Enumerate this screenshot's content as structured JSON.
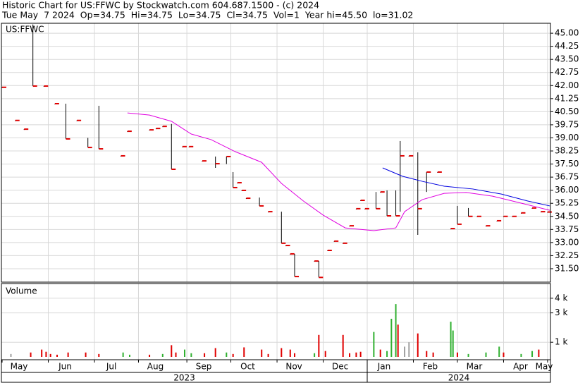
{
  "chart_data": [
    {
      "type": "ohlc",
      "title": "Historic Chart for US:FFWC by Stockwatch.com 604.687.1500 - (c) 2024",
      "subtitle": "Tue May  7 2024  Op=34.75  Hi=34.75  Lo=34.75  Cl=34.75  Vol=1  Year hi=45.50  lo=31.02",
      "label": "US:FFWC",
      "xlim": [
        0,
        249
      ],
      "xticks": [
        {
          "value": 0,
          "label": "May"
        },
        {
          "value": 21,
          "label": "Jun"
        },
        {
          "value": 42,
          "label": "Jul"
        },
        {
          "value": 62,
          "label": "Aug"
        },
        {
          "value": 84,
          "label": "Sep"
        },
        {
          "value": 104,
          "label": "Oct"
        },
        {
          "value": 125,
          "label": "Nov"
        },
        {
          "value": 146,
          "label": "Dec"
        },
        {
          "value": 166,
          "label": "Jan"
        },
        {
          "value": 187,
          "label": "Feb"
        },
        {
          "value": 207,
          "label": "Mar"
        },
        {
          "value": 228,
          "label": "Apr"
        },
        {
          "value": 248,
          "label": "May"
        }
      ],
      "years": [
        "2023",
        "2024"
      ],
      "ylim": [
        30.73,
        45.57
      ],
      "yticks": [
        {
          "value": 31.5,
          "label": "31.50"
        },
        32.25,
        {
          "value": 33,
          "label": "33.00"
        },
        33.75,
        {
          "value": 34.5,
          "label": "34.50"
        },
        35.25,
        {
          "value": 36,
          "label": "36.00"
        },
        36.75,
        {
          "value": 37.5,
          "label": "37.50"
        },
        38.25,
        {
          "value": 39,
          "label": "39.00"
        },
        39.75,
        {
          "value": 40.5,
          "label": "40.50"
        },
        41.25,
        {
          "value": 42,
          "label": "42.00"
        },
        42.75,
        {
          "value": 43.5,
          "label": "43.50"
        },
        44.25,
        {
          "value": 45,
          "label": "45.00"
        }
      ],
      "grid": true,
      "wick_color": "#000000",
      "close_color": "#e00000",
      "x": [
        0,
        6,
        10,
        14,
        19,
        24,
        29,
        34,
        39,
        44,
        54,
        57,
        67,
        70,
        73,
        77,
        82,
        85,
        91,
        97,
        102,
        105,
        107,
        109,
        111,
        117,
        121,
        127,
        129,
        131,
        133,
        142,
        144,
        148,
        151,
        155,
        158,
        161,
        163,
        165,
        170,
        172,
        175,
        179,
        181,
        185,
        189,
        193,
        198,
        204,
        207,
        212,
        216,
        220,
        225,
        228,
        232,
        236,
        241,
        245,
        248
      ],
      "high": [
        41.9,
        40.0,
        39.5,
        45.5,
        41.97,
        40.96,
        40.96,
        40.0,
        39.0,
        40.84,
        37.97,
        39.38,
        39.46,
        39.54,
        39.66,
        39.8,
        38.5,
        38.5,
        37.68,
        37.93,
        37.93,
        37.04,
        36.43,
        35.99,
        35.54,
        35.58,
        34.77,
        34.77,
        32.83,
        32.35,
        32.35,
        31.94,
        31.94,
        32.55,
        33.08,
        32.96,
        33.96,
        34.94,
        35.42,
        34.94,
        35.9,
        35.9,
        35.99,
        35.99,
        38.82,
        37.97,
        38.17,
        37.04,
        37.04,
        33.8,
        35.1,
        34.98,
        34.5,
        33.96,
        34.25,
        34.5,
        34.5,
        34.7,
        34.98,
        34.77,
        34.75
      ],
      "low": [
        41.9,
        40.0,
        39.5,
        41.97,
        41.97,
        40.96,
        38.94,
        40.0,
        38.45,
        38.37,
        37.97,
        39.38,
        39.46,
        39.54,
        39.66,
        37.2,
        38.5,
        38.5,
        37.68,
        37.28,
        37.5,
        36.15,
        36.43,
        35.99,
        35.54,
        35.1,
        34.77,
        32.96,
        32.83,
        32.35,
        31.05,
        31.94,
        31.0,
        32.55,
        33.08,
        32.96,
        33.96,
        34.94,
        35.42,
        34.94,
        34.94,
        35.9,
        34.53,
        34.53,
        34.77,
        37.97,
        33.44,
        35.9,
        37.04,
        33.8,
        34.05,
        34.5,
        34.5,
        33.96,
        34.25,
        34.5,
        34.5,
        34.7,
        34.98,
        34.77,
        34.75
      ],
      "close": [
        41.9,
        40.0,
        39.5,
        41.97,
        41.97,
        40.96,
        38.94,
        40.0,
        38.45,
        38.37,
        37.97,
        39.38,
        39.46,
        39.54,
        39.66,
        37.2,
        38.5,
        38.5,
        37.68,
        37.52,
        37.93,
        36.15,
        36.43,
        35.99,
        35.54,
        35.1,
        34.77,
        32.96,
        32.83,
        32.35,
        31.05,
        31.94,
        31.0,
        32.55,
        33.08,
        32.96,
        33.96,
        34.94,
        35.42,
        34.94,
        34.94,
        35.9,
        34.53,
        34.53,
        37.97,
        37.97,
        34.94,
        37.04,
        37.04,
        33.8,
        34.05,
        34.5,
        34.5,
        33.96,
        34.25,
        34.5,
        34.5,
        34.7,
        34.98,
        34.77,
        34.75
      ],
      "series": [
        {
          "color": "#e000e0",
          "x": [
            57,
            67,
            77,
            86,
            95,
            106,
            118,
            127,
            137,
            146,
            156,
            169,
            179,
            183,
            191,
            201,
            211,
            223,
            236,
            249
          ],
          "values": [
            40.43,
            40.31,
            39.95,
            39.22,
            38.9,
            38.21,
            37.6,
            36.39,
            35.38,
            34.57,
            33.84,
            33.68,
            33.84,
            34.77,
            35.46,
            35.82,
            35.87,
            35.66,
            35.26,
            34.85
          ]
        },
        {
          "color": "#0000e0",
          "x": [
            173,
            182,
            191,
            201,
            214,
            227,
            239,
            249
          ],
          "values": [
            37.28,
            36.8,
            36.51,
            36.23,
            36.07,
            35.78,
            35.38,
            35.1
          ]
        }
      ]
    },
    {
      "type": "bar",
      "title": "Volume",
      "xlim": [
        0,
        249
      ],
      "ylim": [
        0,
        5000
      ],
      "yticks": [
        {
          "value": 4000,
          "label": "4 k"
        },
        {
          "value": 3000,
          "label": "3 k"
        },
        {
          "value": 1000,
          "label": "1 k"
        }
      ],
      "x": [
        4,
        13,
        18,
        20,
        22,
        25,
        30,
        38,
        44,
        55,
        58,
        67,
        73,
        77,
        79,
        83,
        86,
        92,
        97,
        102,
        105,
        110,
        118,
        121,
        127,
        131,
        133,
        142,
        144,
        147,
        155,
        158,
        161,
        163,
        169,
        172,
        175,
        177,
        179,
        180,
        183,
        185,
        189,
        193,
        196,
        204,
        205,
        207,
        212,
        220,
        226,
        228,
        236,
        241,
        244
      ],
      "values": [
        200,
        300,
        500,
        350,
        200,
        150,
        300,
        300,
        200,
        300,
        150,
        150,
        200,
        800,
        300,
        500,
        250,
        250,
        600,
        300,
        200,
        650,
        500,
        200,
        600,
        500,
        250,
        250,
        1500,
        400,
        1500,
        250,
        300,
        350,
        1700,
        500,
        400,
        2600,
        3600,
        2200,
        700,
        1000,
        1600,
        400,
        300,
        2400,
        1800,
        300,
        200,
        300,
        700,
        300,
        200,
        400,
        500
      ],
      "colors": [
        "#a0a0a0",
        "#e00000",
        "#e00000",
        "#e00000",
        "#e00000",
        "#e00000",
        "#e00000",
        "#e00000",
        "#e00000",
        "#30b030",
        "#30b030",
        "#e00000",
        "#30b030",
        "#e00000",
        "#e00000",
        "#30b030",
        "#30b030",
        "#e00000",
        "#e00000",
        "#30b030",
        "#e00000",
        "#e00000",
        "#e00000",
        "#e00000",
        "#e00000",
        "#e00000",
        "#e00000",
        "#30b030",
        "#e00000",
        "#e00000",
        "#e00000",
        "#e00000",
        "#e00000",
        "#e00000",
        "#30b030",
        "#e00000",
        "#30b030",
        "#30b030",
        "#30b030",
        "#e00000",
        "#a0a0a0",
        "#a0a0a0",
        "#e00000",
        "#e00000",
        "#e00000",
        "#30b030",
        "#30b030",
        "#e00000",
        "#30b030",
        "#30b030",
        "#30b030",
        "#e00000",
        "#30b030",
        "#30b030",
        "#e00000"
      ]
    }
  ]
}
